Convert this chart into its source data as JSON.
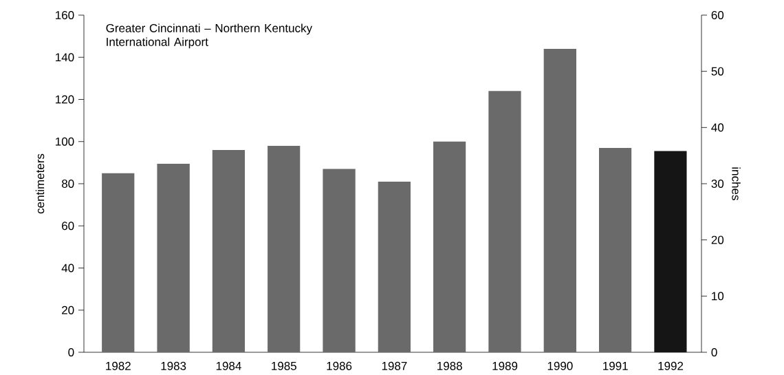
{
  "chart_data": {
    "type": "bar",
    "title": "Greater Cincinnati – Northern Kentucky International Airport",
    "categories": [
      "1982",
      "1983",
      "1984",
      "1985",
      "1986",
      "1987",
      "1988",
      "1989",
      "1990",
      "1991",
      "1992"
    ],
    "values": [
      85,
      89.5,
      96,
      98,
      87,
      81,
      100,
      124,
      144,
      97,
      95.5
    ],
    "colors": [
      "#6a6a6a",
      "#6a6a6a",
      "#6a6a6a",
      "#6a6a6a",
      "#6a6a6a",
      "#6a6a6a",
      "#6a6a6a",
      "#6a6a6a",
      "#6a6a6a",
      "#6a6a6a",
      "#151515"
    ],
    "ylabel": "centimeters",
    "y2label": "inches",
    "ylim": [
      0,
      160
    ],
    "yticks": [
      0,
      20,
      40,
      60,
      80,
      100,
      120,
      140,
      160
    ],
    "y2lim": [
      0,
      60
    ],
    "y2ticks": [
      0,
      10,
      20,
      30,
      40,
      50,
      60
    ]
  }
}
